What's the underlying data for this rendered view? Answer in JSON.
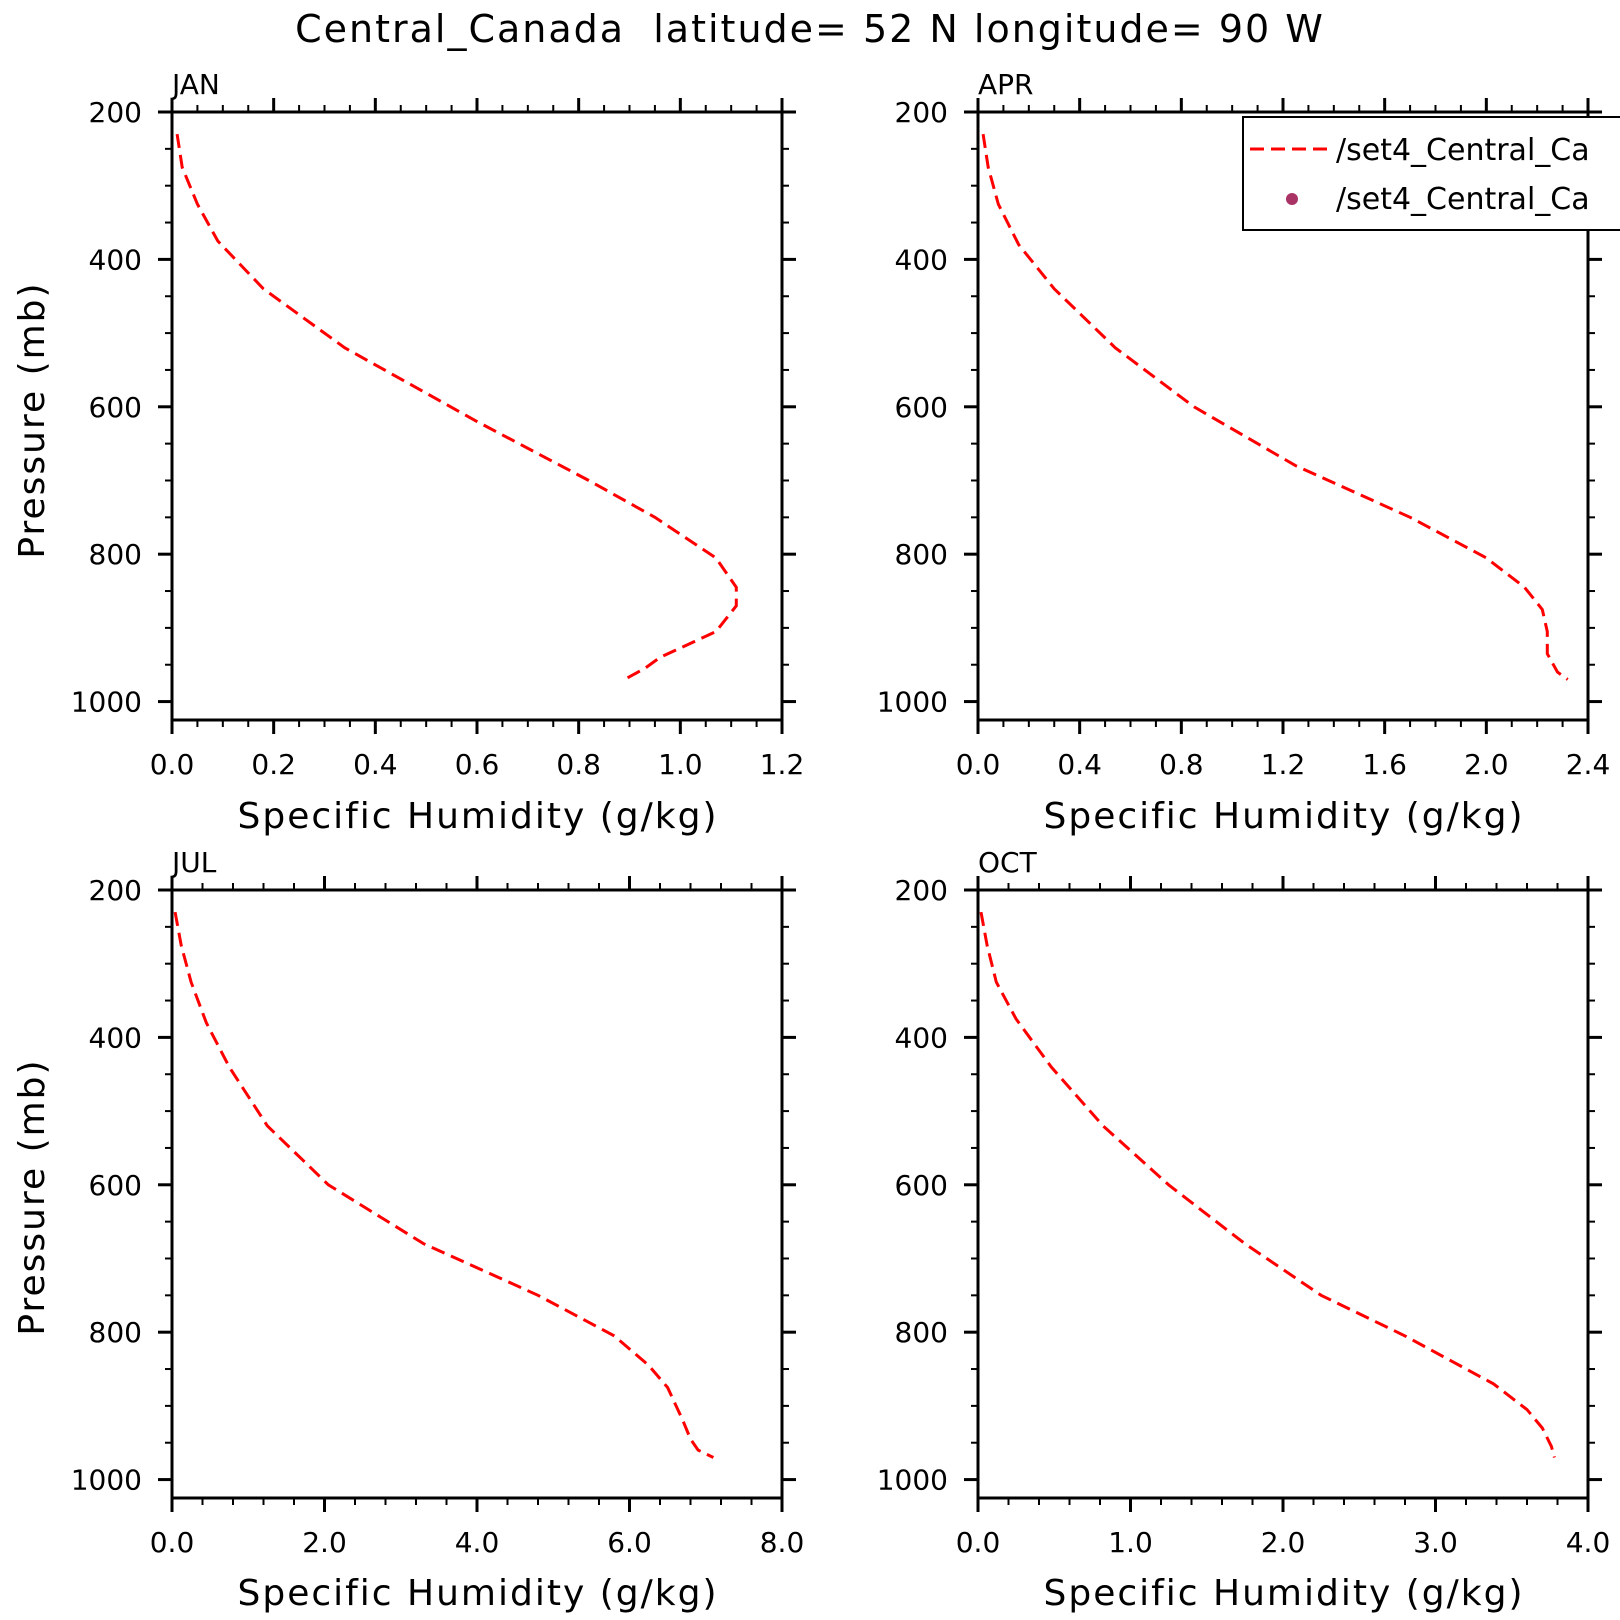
{
  "figure": {
    "title": "Central_Canada  latitude= 52 N longitude= 90 W"
  },
  "legend": {
    "entries": [
      {
        "label": "/set4_Central_Ca",
        "style": "dashed-line",
        "color": "#ff0000"
      },
      {
        "label": "/set4_Central_Ca",
        "style": "dot",
        "color": "#aa3366"
      }
    ]
  },
  "chart_data": [
    {
      "type": "line",
      "panel": "JAN",
      "xlabel": "Specific Humidity (g/kg)",
      "ylabel": "Pressure (mb)",
      "xlim": [
        0,
        1.2
      ],
      "ylim": [
        200,
        1025
      ],
      "y_inverted": true,
      "xticks": [
        "0.0",
        "0.2",
        "0.4",
        "0.6",
        "0.8",
        "1.0",
        "1.2"
      ],
      "yticks": [
        "200",
        "400",
        "600",
        "800",
        "1000"
      ],
      "series": [
        {
          "color": "#ff0000",
          "dash": "dashed",
          "points": [
            [
              0.01,
              230
            ],
            [
              0.02,
              275
            ],
            [
              0.05,
              325
            ],
            [
              0.09,
              375
            ],
            [
              0.18,
              440
            ],
            [
              0.34,
              520
            ],
            [
              0.6,
              620
            ],
            [
              0.82,
              700
            ],
            [
              0.95,
              750
            ],
            [
              1.07,
              805
            ],
            [
              1.11,
              845
            ],
            [
              1.11,
              870
            ],
            [
              1.07,
              905
            ],
            [
              0.96,
              940
            ],
            [
              0.93,
              955
            ],
            [
              0.89,
              970
            ]
          ]
        }
      ]
    },
    {
      "type": "line",
      "panel": "APR",
      "xlabel": "Specific Humidity (g/kg)",
      "ylabel": "Pressure (mb)",
      "xlim": [
        0,
        2.4
      ],
      "ylim": [
        200,
        1025
      ],
      "y_inverted": true,
      "xticks": [
        "0.0",
        "0.4",
        "0.8",
        "1.2",
        "1.6",
        "2.0",
        "2.4"
      ],
      "yticks": [
        "200",
        "400",
        "600",
        "800",
        "1000"
      ],
      "series": [
        {
          "color": "#ff0000",
          "dash": "dashed",
          "points": [
            [
              0.02,
              230
            ],
            [
              0.04,
              275
            ],
            [
              0.08,
              325
            ],
            [
              0.16,
              380
            ],
            [
              0.3,
              440
            ],
            [
              0.54,
              520
            ],
            [
              0.85,
              600
            ],
            [
              1.25,
              680
            ],
            [
              1.7,
              750
            ],
            [
              2.0,
              805
            ],
            [
              2.15,
              845
            ],
            [
              2.22,
              875
            ],
            [
              2.24,
              905
            ],
            [
              2.24,
              935
            ],
            [
              2.28,
              960
            ],
            [
              2.32,
              970
            ]
          ]
        }
      ]
    },
    {
      "type": "line",
      "panel": "JUL",
      "xlabel": "Specific Humidity (g/kg)",
      "ylabel": "Pressure (mb)",
      "xlim": [
        0,
        8.0
      ],
      "ylim": [
        200,
        1025
      ],
      "y_inverted": true,
      "xticks": [
        "0.0",
        "2.0",
        "4.0",
        "6.0",
        "8.0"
      ],
      "yticks": [
        "200",
        "400",
        "600",
        "800",
        "1000"
      ],
      "series": [
        {
          "color": "#ff0000",
          "dash": "dashed",
          "points": [
            [
              0.04,
              230
            ],
            [
              0.12,
              275
            ],
            [
              0.25,
              325
            ],
            [
              0.45,
              380
            ],
            [
              0.75,
              440
            ],
            [
              1.25,
              520
            ],
            [
              2.05,
              600
            ],
            [
              3.3,
              680
            ],
            [
              4.8,
              750
            ],
            [
              5.8,
              805
            ],
            [
              6.25,
              845
            ],
            [
              6.5,
              875
            ],
            [
              6.7,
              920
            ],
            [
              6.8,
              945
            ],
            [
              6.9,
              960
            ],
            [
              7.1,
              970
            ]
          ]
        }
      ]
    },
    {
      "type": "line",
      "panel": "OCT",
      "xlabel": "Specific Humidity (g/kg)",
      "ylabel": "Pressure (mb)",
      "xlim": [
        0,
        4.0
      ],
      "ylim": [
        200,
        1025
      ],
      "y_inverted": true,
      "xticks": [
        "0.0",
        "1.0",
        "2.0",
        "3.0",
        "4.0"
      ],
      "yticks": [
        "200",
        "400",
        "600",
        "800",
        "1000"
      ],
      "series": [
        {
          "color": "#ff0000",
          "dash": "dashed",
          "points": [
            [
              0.02,
              230
            ],
            [
              0.06,
              275
            ],
            [
              0.12,
              325
            ],
            [
              0.25,
              375
            ],
            [
              0.48,
              440
            ],
            [
              0.82,
              520
            ],
            [
              1.25,
              600
            ],
            [
              1.75,
              680
            ],
            [
              2.25,
              750
            ],
            [
              2.8,
              805
            ],
            [
              3.38,
              870
            ],
            [
              3.6,
              905
            ],
            [
              3.7,
              930
            ],
            [
              3.76,
              955
            ],
            [
              3.78,
              970
            ]
          ]
        }
      ]
    }
  ]
}
